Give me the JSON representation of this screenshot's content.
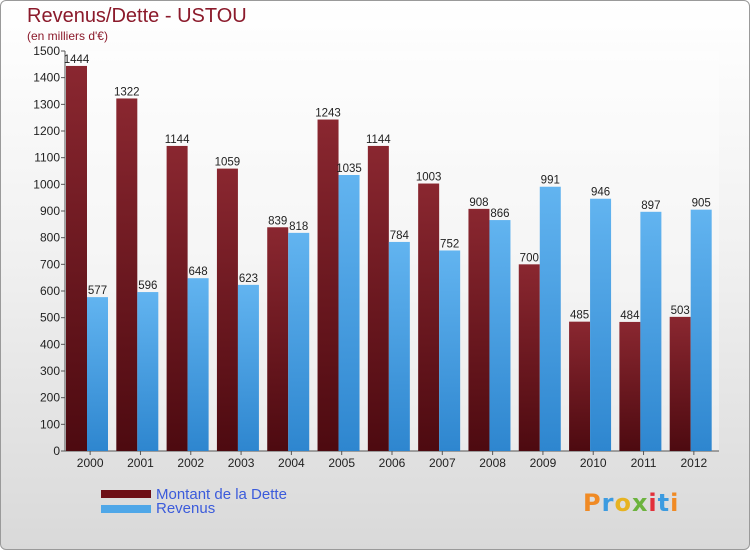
{
  "title": "Revenus/Dette - USTOU",
  "subtitle": "(en milliers d'€)",
  "logo": "Proxiti",
  "colors": {
    "dette": "#6e0f16",
    "revenus": "#4fa7e8",
    "title": "#8b1a2b",
    "legend_text": "#3b5bdb"
  },
  "chart_data": {
    "type": "bar",
    "title": "Revenus/Dette - USTOU",
    "subtitle": "(en milliers d'€)",
    "categories": [
      "2000",
      "2001",
      "2002",
      "2003",
      "2004",
      "2005",
      "2006",
      "2007",
      "2008",
      "2009",
      "2010",
      "2011",
      "2012"
    ],
    "series": [
      {
        "name": "Montant de la Dette",
        "values": [
          1444,
          1322,
          1144,
          1059,
          839,
          1243,
          1144,
          1003,
          908,
          700,
          485,
          484,
          503
        ]
      },
      {
        "name": "Revenus",
        "values": [
          577,
          596,
          648,
          623,
          818,
          1035,
          784,
          752,
          866,
          991,
          946,
          897,
          905
        ]
      }
    ],
    "ylim": [
      0,
      1500
    ],
    "yticks": [
      0,
      100,
      200,
      300,
      400,
      500,
      600,
      700,
      800,
      900,
      1000,
      1100,
      1200,
      1300,
      1400,
      1500
    ],
    "grid": false,
    "legend": "bottom-left"
  }
}
